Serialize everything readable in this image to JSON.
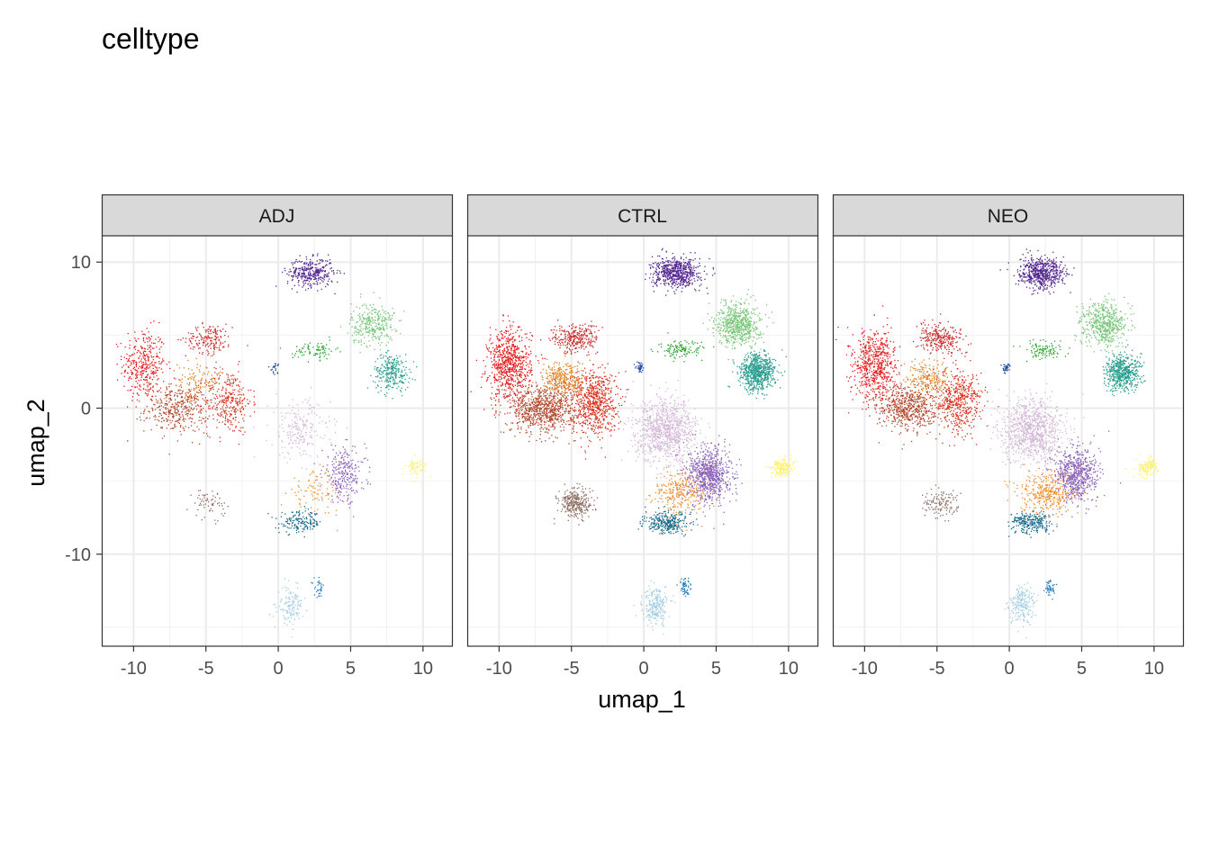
{
  "chart_data": {
    "type": "scatter",
    "title": "celltype",
    "xlabel": "umap_1",
    "ylabel": "umap_2",
    "xlim": [
      -12.2,
      12
    ],
    "ylim": [
      -16.3,
      11.8
    ],
    "x_ticks": [
      -10,
      -5,
      0,
      5,
      10
    ],
    "x_tick_labels": [
      "-10",
      "-5",
      "0",
      "5",
      "10"
    ],
    "y_ticks": [
      10,
      0,
      -10
    ],
    "y_tick_labels": [
      "10",
      "0",
      "-10"
    ],
    "grid": true,
    "legend": "none",
    "facets": [
      {
        "label": "ADJ",
        "density": 0.55
      },
      {
        "label": "CTRL",
        "density": 1.0
      },
      {
        "label": "NEO",
        "density": 0.85
      }
    ],
    "clusters": [
      {
        "color": "#e41a1c",
        "cx": -9.3,
        "cy": 3.0,
        "sx": 1.2,
        "sy": 2.0,
        "n": 900,
        "w": [
          0.7,
          0.8,
          0.8
        ]
      },
      {
        "color": "#b04a2e",
        "cx": -7.0,
        "cy": 0.0,
        "sx": 1.8,
        "sy": 1.3,
        "n": 900,
        "w": [
          0.8,
          0.9,
          0.8
        ]
      },
      {
        "color": "#d7301f",
        "cx": -3.5,
        "cy": 0.5,
        "sx": 1.3,
        "sy": 1.8,
        "n": 700,
        "w": [
          0.8,
          1.0,
          0.8
        ]
      },
      {
        "color": "#c62828",
        "cx": -4.8,
        "cy": 4.8,
        "sx": 1.3,
        "sy": 0.8,
        "n": 350,
        "w": [
          0.9,
          0.8,
          0.9
        ]
      },
      {
        "color": "#e08020",
        "cx": -5.5,
        "cy": 2.0,
        "sx": 1.2,
        "sy": 1.0,
        "n": 300,
        "w": [
          0.6,
          1.0,
          0.8
        ]
      },
      {
        "color": "#54278f",
        "cx": 2.2,
        "cy": 9.3,
        "sx": 1.3,
        "sy": 0.8,
        "n": 700,
        "w": [
          0.9,
          0.9,
          1.0
        ]
      },
      {
        "color": "#78c679",
        "cx": 6.5,
        "cy": 5.8,
        "sx": 1.2,
        "sy": 1.2,
        "n": 700,
        "w": [
          0.8,
          0.9,
          0.9
        ]
      },
      {
        "color": "#2a9d8f",
        "cx": 7.8,
        "cy": 2.5,
        "sx": 1.0,
        "sy": 1.0,
        "n": 700,
        "w": [
          0.7,
          1.0,
          0.9
        ]
      },
      {
        "color": "#2ca02c",
        "cx": 2.5,
        "cy": 4.0,
        "sx": 1.2,
        "sy": 0.5,
        "n": 150,
        "w": [
          1.0,
          0.8,
          0.8
        ]
      },
      {
        "color": "#d4b8d8",
        "cx": 1.5,
        "cy": -1.5,
        "sx": 1.7,
        "sy": 1.7,
        "n": 1000,
        "w": [
          0.4,
          1.0,
          1.2
        ]
      },
      {
        "color": "#8a63b8",
        "cx": 4.5,
        "cy": -4.5,
        "sx": 1.2,
        "sy": 1.5,
        "n": 800,
        "w": [
          0.6,
          1.0,
          1.0
        ]
      },
      {
        "color": "#f28e2b",
        "cx": 2.5,
        "cy": -5.8,
        "sx": 1.5,
        "sy": 1.2,
        "n": 350,
        "w": [
          0.5,
          0.8,
          1.2
        ]
      },
      {
        "color": "#1a6b8a",
        "cx": 1.5,
        "cy": -7.8,
        "sx": 1.2,
        "sy": 0.6,
        "n": 300,
        "w": [
          1.0,
          1.0,
          1.0
        ]
      },
      {
        "color": "#2c7fb8",
        "cx": 2.8,
        "cy": -12.3,
        "sx": 0.3,
        "sy": 0.5,
        "n": 60,
        "w": [
          1.0,
          1.0,
          1.0
        ]
      },
      {
        "color": "#a6cee3",
        "cx": 0.8,
        "cy": -13.5,
        "sx": 0.7,
        "sy": 1.0,
        "n": 250,
        "w": [
          1.0,
          1.0,
          1.0
        ]
      },
      {
        "color": "#8c6d62",
        "cx": -4.8,
        "cy": -6.5,
        "sx": 0.9,
        "sy": 0.8,
        "n": 300,
        "w": [
          0.4,
          1.0,
          0.5
        ]
      },
      {
        "color": "#fff06a",
        "cx": 9.5,
        "cy": -4.0,
        "sx": 0.6,
        "sy": 0.5,
        "n": 150,
        "w": [
          0.8,
          1.0,
          1.0
        ]
      },
      {
        "color": "#1f4e9e",
        "cx": -0.3,
        "cy": 2.8,
        "sx": 0.25,
        "sy": 0.3,
        "n": 40,
        "w": [
          1.0,
          1.0,
          1.0
        ]
      }
    ]
  }
}
